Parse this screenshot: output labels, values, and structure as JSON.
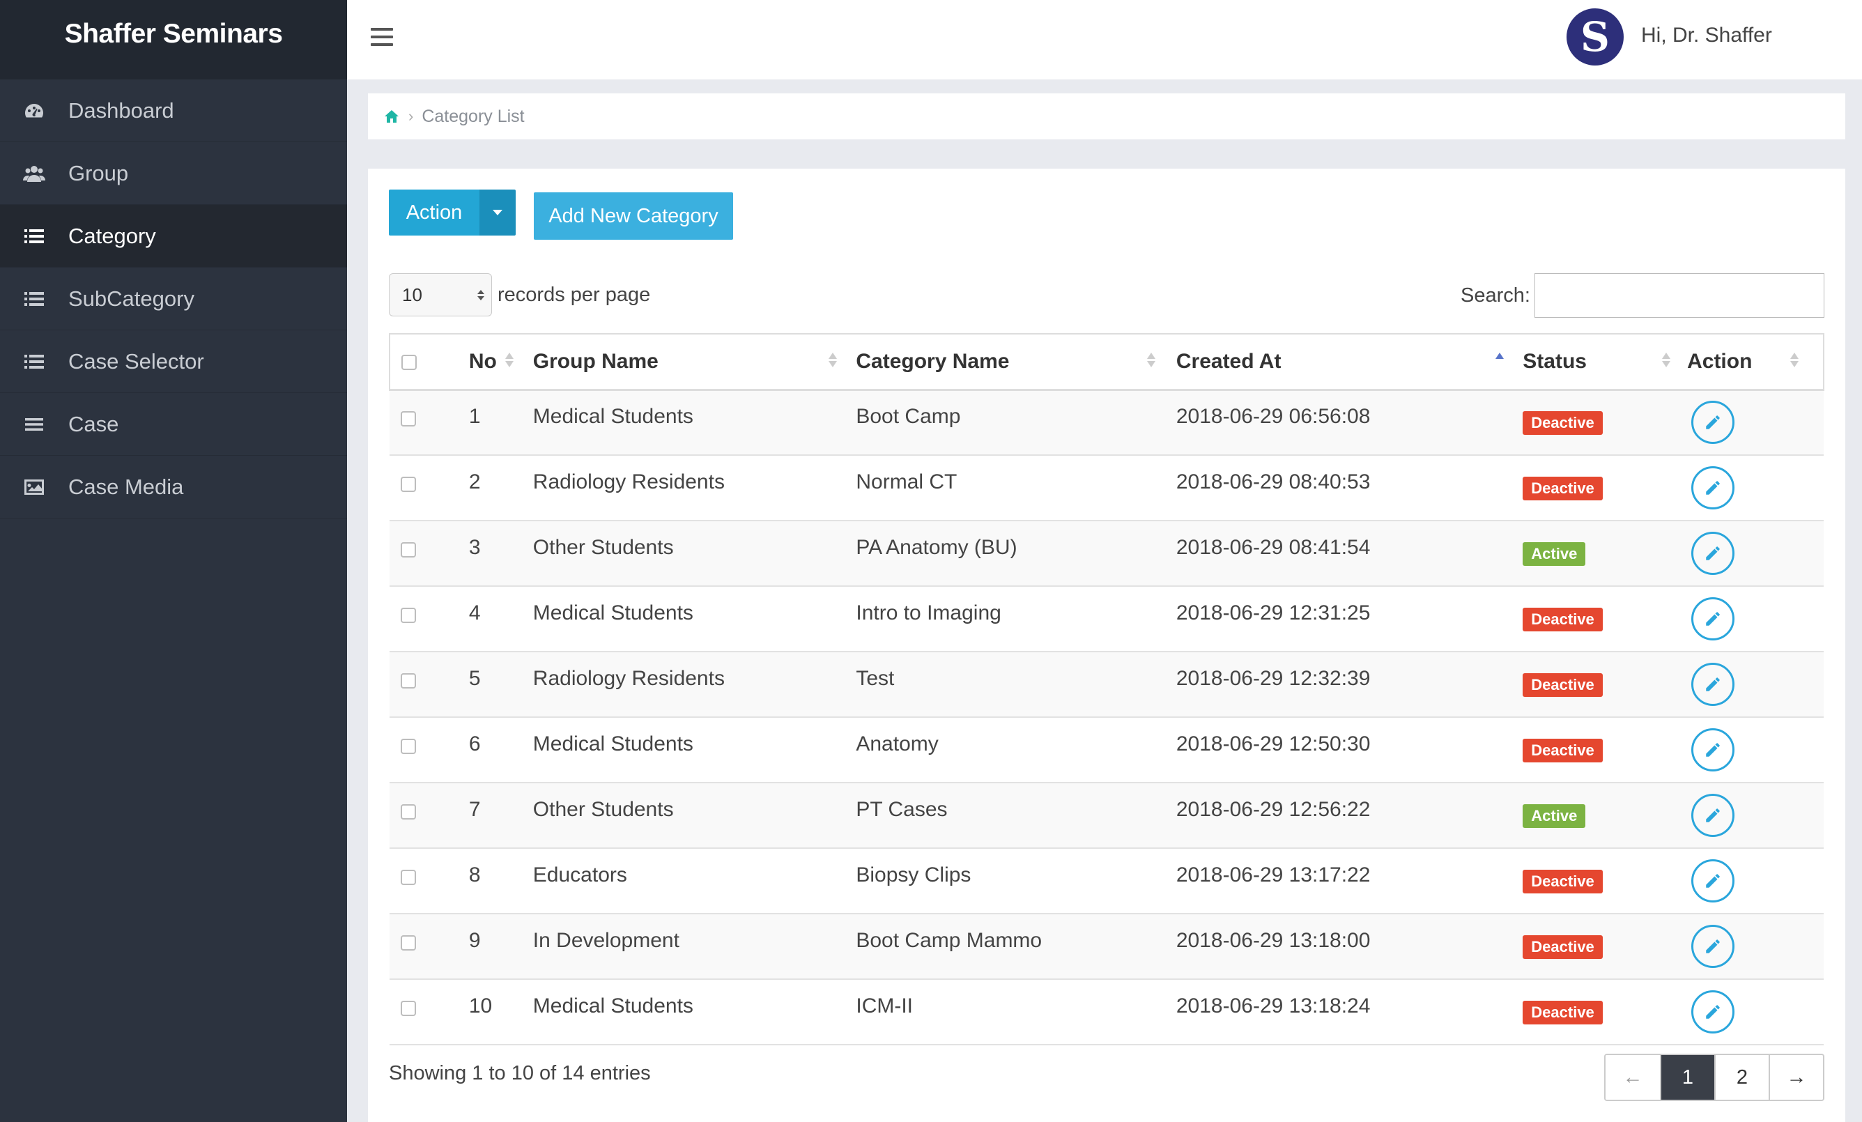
{
  "brand": "Shaffer Seminars",
  "user": {
    "greeting": "Hi, Dr. Shaffer",
    "avatar_letter": "S"
  },
  "sidebar": {
    "items": [
      {
        "label": "Dashboard",
        "icon": "dashboard-icon"
      },
      {
        "label": "Group",
        "icon": "users-icon"
      },
      {
        "label": "Category",
        "icon": "list-icon",
        "active": true
      },
      {
        "label": "SubCategory",
        "icon": "list-icon"
      },
      {
        "label": "Case Selector",
        "icon": "list-icon"
      },
      {
        "label": "Case",
        "icon": "bars-icon"
      },
      {
        "label": "Case Media",
        "icon": "image-icon"
      }
    ]
  },
  "breadcrumb": {
    "current": "Category List",
    "separator": "›"
  },
  "toolbar": {
    "action_label": "Action",
    "add_label": "Add New Category"
  },
  "length": {
    "value": "10",
    "suffix": "records per page"
  },
  "search": {
    "label": "Search:",
    "value": ""
  },
  "table": {
    "headers": {
      "no": "No",
      "group": "Group Name",
      "category": "Category Name",
      "created": "Created At",
      "status": "Status",
      "action": "Action"
    },
    "rows": [
      {
        "no": "1",
        "group": "Medical Students",
        "category": "Boot Camp",
        "created": "2018-06-29 06:56:08",
        "status": "Deactive"
      },
      {
        "no": "2",
        "group": "Radiology Residents",
        "category": "Normal CT",
        "created": "2018-06-29 08:40:53",
        "status": "Deactive"
      },
      {
        "no": "3",
        "group": "Other Students",
        "category": "PA Anatomy (BU)",
        "created": "2018-06-29 08:41:54",
        "status": "Active"
      },
      {
        "no": "4",
        "group": "Medical Students",
        "category": "Intro to Imaging",
        "created": "2018-06-29 12:31:25",
        "status": "Deactive"
      },
      {
        "no": "5",
        "group": "Radiology Residents",
        "category": "Test",
        "created": "2018-06-29 12:32:39",
        "status": "Deactive"
      },
      {
        "no": "6",
        "group": "Medical Students",
        "category": "Anatomy",
        "created": "2018-06-29 12:50:30",
        "status": "Deactive"
      },
      {
        "no": "7",
        "group": "Other Students",
        "category": "PT Cases",
        "created": "2018-06-29 12:56:22",
        "status": "Active"
      },
      {
        "no": "8",
        "group": "Educators",
        "category": "Biopsy Clips",
        "created": "2018-06-29 13:17:22",
        "status": "Deactive"
      },
      {
        "no": "9",
        "group": "In Development",
        "category": "Boot Camp Mammo",
        "created": "2018-06-29 13:18:00",
        "status": "Deactive"
      },
      {
        "no": "10",
        "group": "Medical Students",
        "category": "ICM-II",
        "created": "2018-06-29 13:18:24",
        "status": "Deactive"
      }
    ]
  },
  "footer": {
    "info": "Showing 1 to 10 of 14 entries",
    "pages": [
      "1",
      "2"
    ],
    "current_page": "1",
    "prev": "←",
    "next": "→"
  },
  "colors": {
    "active": "#7cb342",
    "deactive": "#e5472f",
    "accent": "#23a6d5"
  }
}
